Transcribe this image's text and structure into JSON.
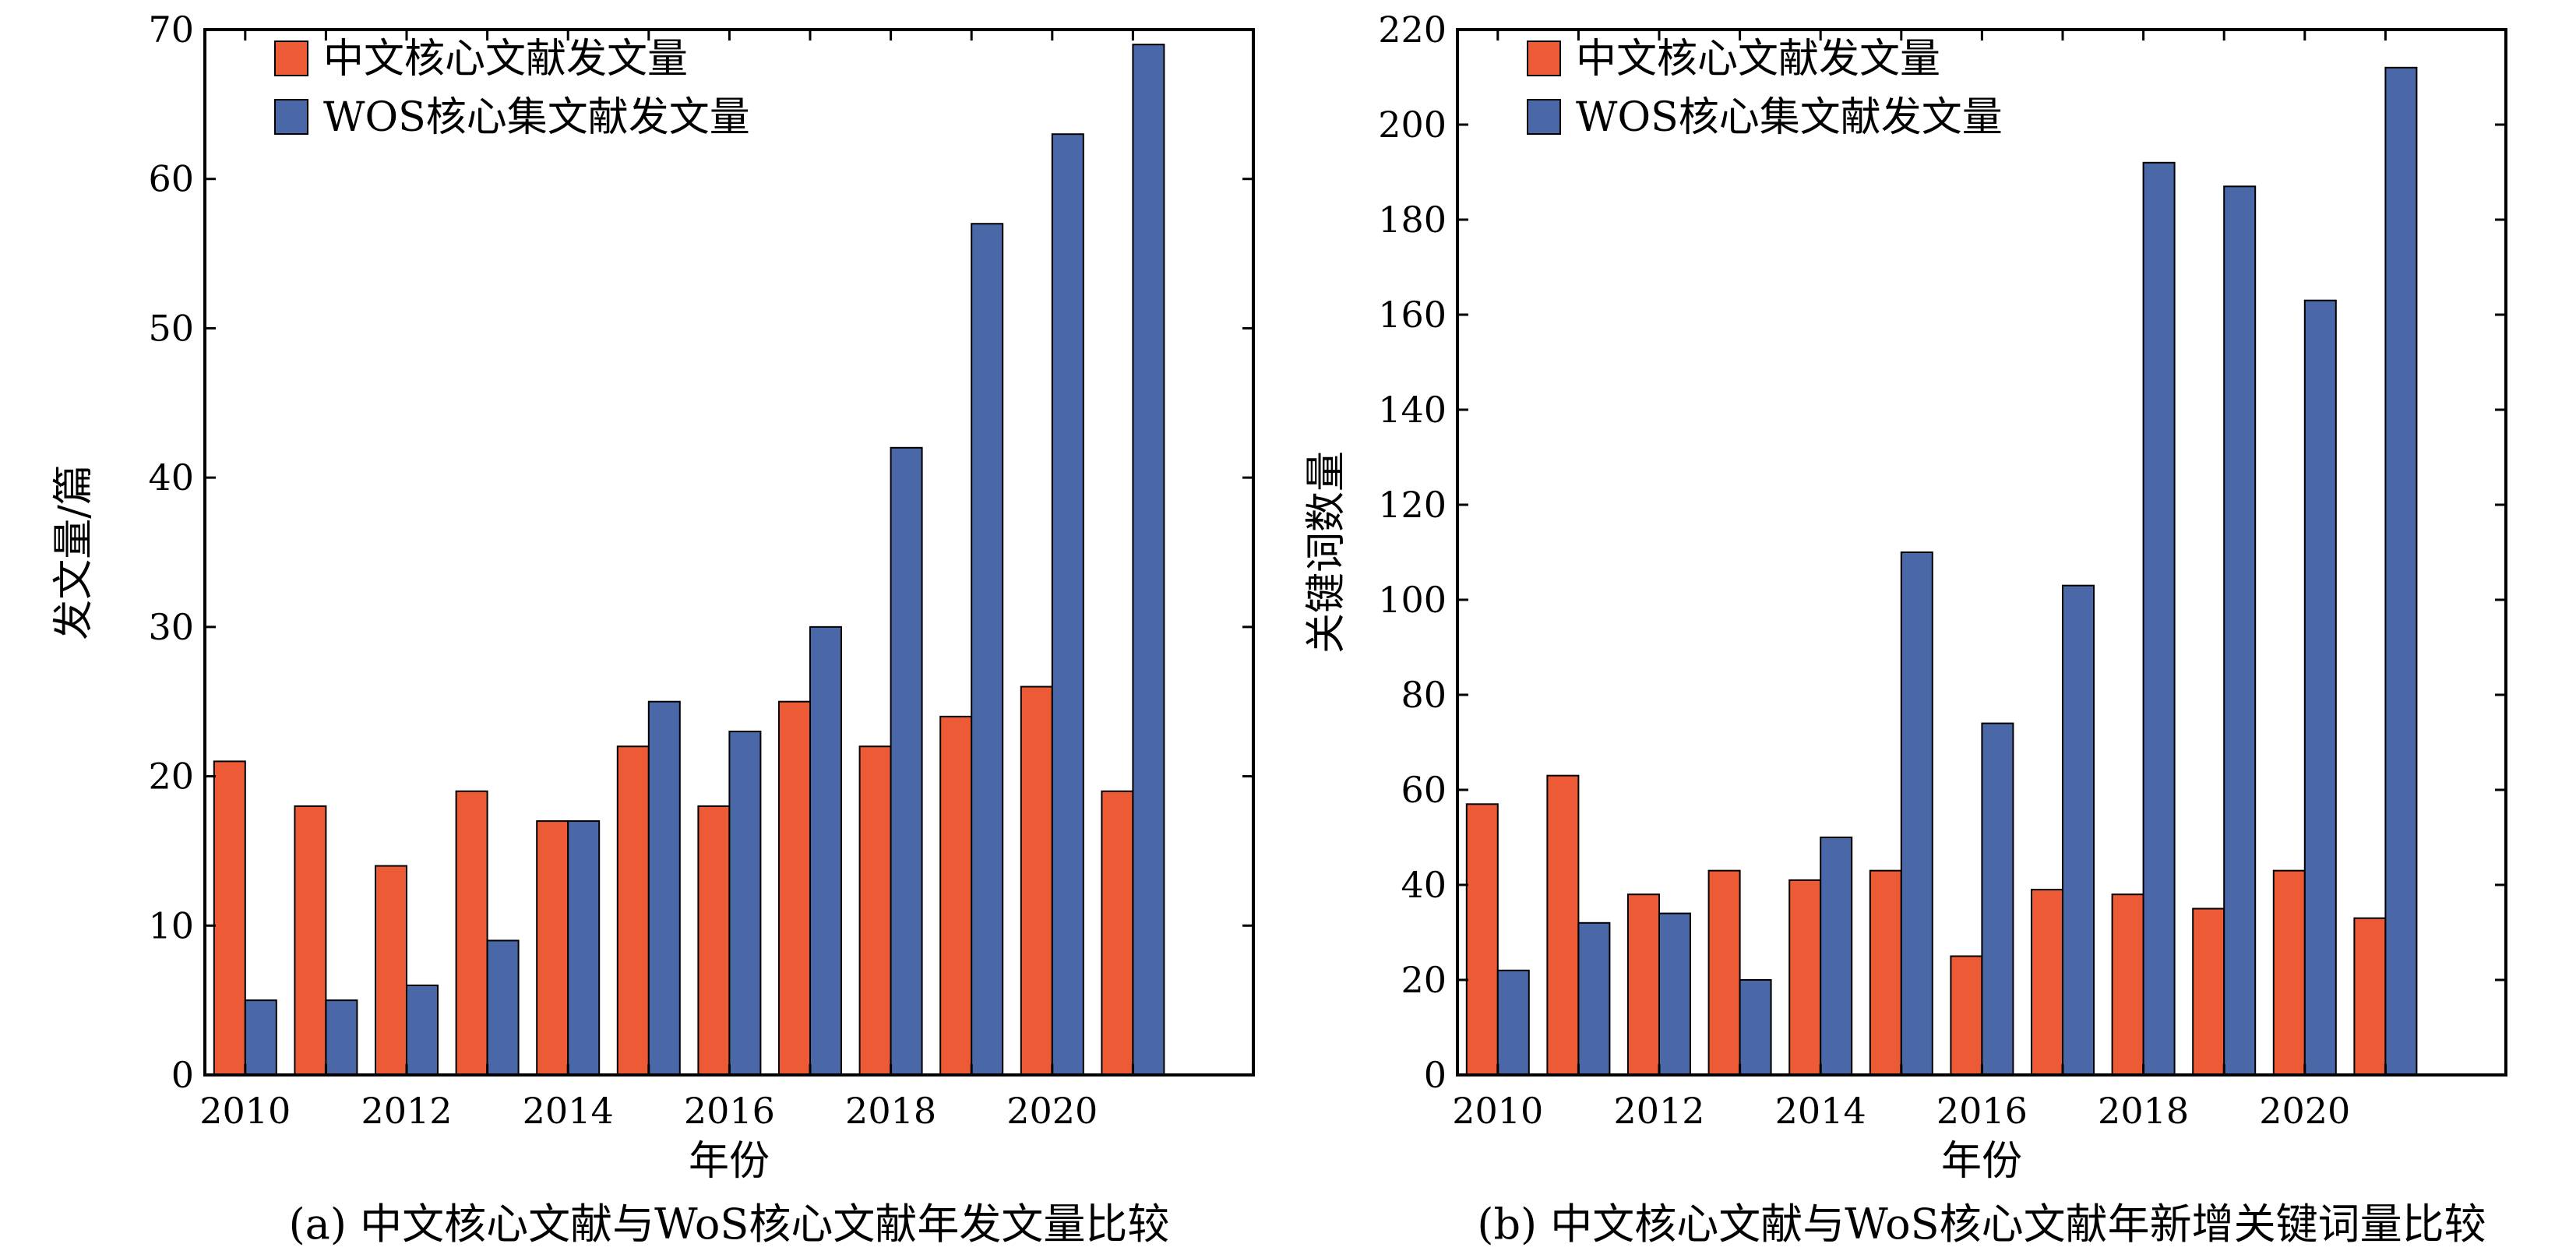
{
  "colors": {
    "cn": "#ec5b35",
    "wos": "#4a68a8",
    "axis": "#000000"
  },
  "chart_data": [
    {
      "type": "bar",
      "caption": "(a) 中文核心文献与WoS核心文献年发文量比较",
      "xlabel": "年份",
      "ylabel": "发文量/篇",
      "ylim": [
        0,
        70
      ],
      "yticks": [
        0,
        10,
        20,
        30,
        40,
        50,
        60,
        70
      ],
      "xtick_labels": [
        "2010",
        "2012",
        "2014",
        "2016",
        "2018",
        "2020"
      ],
      "categories": [
        "2010",
        "2011",
        "2012",
        "2013",
        "2014",
        "2015",
        "2016",
        "2017",
        "2018",
        "2019",
        "2020",
        "2021"
      ],
      "legend_position": "top-left",
      "series": [
        {
          "name": "中文核心文献发文量",
          "values": [
            21,
            18,
            14,
            19,
            17,
            22,
            18,
            25,
            22,
            24,
            26,
            19
          ]
        },
        {
          "name": "WOS核心集文献发文量",
          "values": [
            5,
            5,
            6,
            9,
            17,
            25,
            23,
            30,
            42,
            57,
            63,
            69
          ]
        }
      ]
    },
    {
      "type": "bar",
      "caption": "(b) 中文核心文献与WoS核心文献年新增关键词量比较",
      "xlabel": "年份",
      "ylabel": "关键词数量",
      "ylim": [
        0,
        220
      ],
      "yticks": [
        0,
        20,
        40,
        60,
        80,
        100,
        120,
        140,
        160,
        180,
        200,
        220
      ],
      "xtick_labels": [
        "2010",
        "2012",
        "2014",
        "2016",
        "2018",
        "2020"
      ],
      "categories": [
        "2010",
        "2011",
        "2012",
        "2013",
        "2014",
        "2015",
        "2016",
        "2017",
        "2018",
        "2019",
        "2020",
        "2021"
      ],
      "legend_position": "top-left",
      "series": [
        {
          "name": "中文核心文献发文量",
          "values": [
            57,
            63,
            38,
            43,
            41,
            43,
            25,
            39,
            38,
            35,
            43,
            33
          ]
        },
        {
          "name": "WOS核心集文献发文量",
          "values": [
            22,
            32,
            34,
            20,
            50,
            110,
            74,
            103,
            192,
            187,
            163,
            212
          ]
        }
      ]
    }
  ]
}
